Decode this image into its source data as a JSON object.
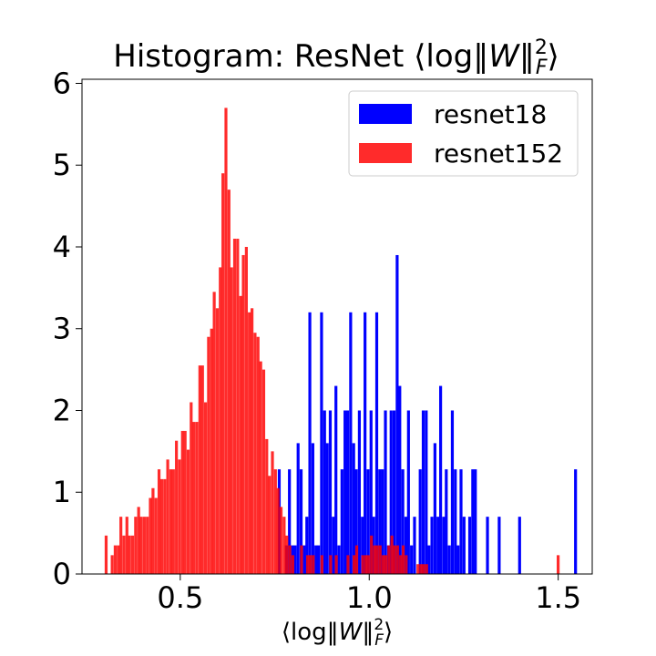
{
  "chart_data": {
    "type": "bar",
    "title": "Histogram: ResNet ⟨log‖W‖²F⟩",
    "title_parts": {
      "prefix": "Histogram: ResNet ⟨log‖",
      "var": "W",
      "mid": "‖",
      "sup": "2",
      "sub": "F",
      "suffix": "⟩"
    },
    "xlabel": "⟨log‖W‖²F⟩",
    "xlabel_parts": {
      "prefix": "⟨log‖",
      "var": "W",
      "mid": "‖",
      "sup": "2",
      "sub": "F",
      "suffix": "⟩"
    },
    "ylabel": "",
    "xlim": [
      0.24,
      1.59
    ],
    "ylim": [
      0,
      6.05
    ],
    "x_ticks": [
      0.5,
      1.0,
      1.5
    ],
    "x_tick_labels": [
      "0.5",
      "1.0",
      "1.5"
    ],
    "y_ticks": [
      0,
      1,
      2,
      3,
      4,
      5,
      6
    ],
    "y_tick_labels": [
      "0",
      "1",
      "2",
      "3",
      "4",
      "5",
      "6"
    ],
    "legend_position": "top-right",
    "bin_width": 0.0077,
    "series": [
      {
        "name": "resnet18",
        "color": "#0000ff",
        "opacity": 1.0,
        "bins": [
          [
            0.758,
            1.28
          ],
          [
            0.777,
            0.35
          ],
          [
            0.785,
            1.28
          ],
          [
            0.793,
            0.35
          ],
          [
            0.8,
            0.35
          ],
          [
            0.808,
            1.6
          ],
          [
            0.816,
            1.28
          ],
          [
            0.824,
            0.35
          ],
          [
            0.831,
            0.7
          ],
          [
            0.839,
            3.2
          ],
          [
            0.847,
            1.6
          ],
          [
            0.855,
            0.35
          ],
          [
            0.862,
            0.35
          ],
          [
            0.87,
            3.2
          ],
          [
            0.878,
            2.0
          ],
          [
            0.885,
            1.6
          ],
          [
            0.893,
            2.0
          ],
          [
            0.901,
            0.7
          ],
          [
            0.908,
            2.3
          ],
          [
            0.916,
            0.35
          ],
          [
            0.924,
            1.28
          ],
          [
            0.932,
            2.0
          ],
          [
            0.939,
            2.0
          ],
          [
            0.947,
            3.2
          ],
          [
            0.955,
            1.6
          ],
          [
            0.962,
            1.28
          ],
          [
            0.97,
            2.0
          ],
          [
            0.978,
            0.7
          ],
          [
            0.985,
            3.2
          ],
          [
            0.993,
            1.28
          ],
          [
            1.001,
            2.0
          ],
          [
            1.008,
            0.7
          ],
          [
            1.016,
            3.2
          ],
          [
            1.024,
            1.28
          ],
          [
            1.031,
            1.28
          ],
          [
            1.039,
            2.0
          ],
          [
            1.047,
            0.35
          ],
          [
            1.054,
            2.0
          ],
          [
            1.062,
            2.0
          ],
          [
            1.07,
            3.9
          ],
          [
            1.077,
            2.3
          ],
          [
            1.085,
            1.28
          ],
          [
            1.093,
            0.7
          ],
          [
            1.1,
            2.0
          ],
          [
            1.108,
            0.35
          ],
          [
            1.116,
            0.7
          ],
          [
            1.131,
            1.28
          ],
          [
            1.139,
            2.0
          ],
          [
            1.147,
            2.0
          ],
          [
            1.154,
            0.35
          ],
          [
            1.162,
            0.7
          ],
          [
            1.17,
            1.6
          ],
          [
            1.178,
            0.7
          ],
          [
            1.185,
            2.3
          ],
          [
            1.193,
            0.7
          ],
          [
            1.2,
            1.28
          ],
          [
            1.208,
            0.35
          ],
          [
            1.216,
            2.0
          ],
          [
            1.224,
            1.28
          ],
          [
            1.231,
            0.35
          ],
          [
            1.239,
            1.28
          ],
          [
            1.247,
            0.7
          ],
          [
            1.262,
            0.7
          ],
          [
            1.27,
            1.28
          ],
          [
            1.277,
            1.28
          ],
          [
            1.309,
            0.7
          ],
          [
            1.34,
            0.7
          ],
          [
            1.394,
            0.7
          ],
          [
            1.542,
            1.28
          ]
        ]
      },
      {
        "name": "resnet152",
        "color": "#ff0000",
        "opacity": 0.83,
        "bins": [
          [
            0.3,
            0.47
          ],
          [
            0.316,
            0.23
          ],
          [
            0.324,
            0.35
          ],
          [
            0.332,
            0.35
          ],
          [
            0.339,
            0.7
          ],
          [
            0.347,
            0.47
          ],
          [
            0.355,
            0.7
          ],
          [
            0.362,
            0.47
          ],
          [
            0.37,
            0.47
          ],
          [
            0.378,
            0.7
          ],
          [
            0.386,
            0.82
          ],
          [
            0.393,
            0.7
          ],
          [
            0.401,
            0.7
          ],
          [
            0.409,
            0.7
          ],
          [
            0.417,
            0.93
          ],
          [
            0.424,
            1.05
          ],
          [
            0.432,
            0.93
          ],
          [
            0.44,
            1.28
          ],
          [
            0.447,
            1.16
          ],
          [
            0.455,
            1.16
          ],
          [
            0.463,
            1.4
          ],
          [
            0.471,
            1.28
          ],
          [
            0.478,
            1.28
          ],
          [
            0.486,
            1.63
          ],
          [
            0.494,
            1.4
          ],
          [
            0.502,
            1.75
          ],
          [
            0.509,
            1.75
          ],
          [
            0.517,
            1.52
          ],
          [
            0.525,
            2.1
          ],
          [
            0.532,
            1.86
          ],
          [
            0.54,
            1.86
          ],
          [
            0.548,
            2.55
          ],
          [
            0.555,
            2.55
          ],
          [
            0.563,
            2.1
          ],
          [
            0.571,
            2.9
          ],
          [
            0.579,
            3.0
          ],
          [
            0.586,
            3.45
          ],
          [
            0.594,
            3.25
          ],
          [
            0.602,
            3.75
          ],
          [
            0.609,
            4.9
          ],
          [
            0.617,
            5.7
          ],
          [
            0.625,
            4.7
          ],
          [
            0.632,
            3.75
          ],
          [
            0.64,
            4.1
          ],
          [
            0.648,
            4.1
          ],
          [
            0.656,
            3.4
          ],
          [
            0.663,
            3.9
          ],
          [
            0.671,
            4.0
          ],
          [
            0.679,
            3.2
          ],
          [
            0.686,
            3.25
          ],
          [
            0.694,
            2.95
          ],
          [
            0.702,
            2.9
          ],
          [
            0.709,
            2.6
          ],
          [
            0.717,
            2.5
          ],
          [
            0.725,
            1.65
          ],
          [
            0.732,
            1.2
          ],
          [
            0.74,
            1.5
          ],
          [
            0.748,
            1.28
          ],
          [
            0.755,
            1.05
          ],
          [
            0.763,
            0.82
          ],
          [
            0.771,
            0.7
          ],
          [
            0.778,
            0.47
          ],
          [
            0.786,
            0.35
          ],
          [
            0.794,
            0.23
          ],
          [
            0.817,
            0.35
          ],
          [
            0.833,
            0.23
          ],
          [
            0.84,
            0.23
          ],
          [
            0.848,
            0.23
          ],
          [
            0.871,
            0.23
          ],
          [
            0.894,
            0.23
          ],
          [
            0.909,
            0.23
          ],
          [
            0.94,
            0.23
          ],
          [
            0.956,
            0.23
          ],
          [
            0.963,
            0.35
          ],
          [
            0.979,
            0.23
          ],
          [
            0.987,
            0.23
          ],
          [
            0.994,
            0.23
          ],
          [
            1.002,
            0.47
          ],
          [
            1.01,
            0.35
          ],
          [
            1.017,
            0.35
          ],
          [
            1.025,
            0.35
          ],
          [
            1.033,
            0.23
          ],
          [
            1.04,
            0.23
          ],
          [
            1.048,
            0.35
          ],
          [
            1.056,
            0.47
          ],
          [
            1.063,
            0.35
          ],
          [
            1.071,
            0.35
          ],
          [
            1.079,
            0.23
          ],
          [
            1.086,
            0.35
          ],
          [
            1.094,
            0.23
          ],
          [
            1.125,
            0.12
          ],
          [
            1.133,
            0.12
          ],
          [
            1.14,
            0.12
          ],
          [
            1.148,
            0.12
          ],
          [
            1.496,
            0.23
          ]
        ]
      }
    ]
  }
}
